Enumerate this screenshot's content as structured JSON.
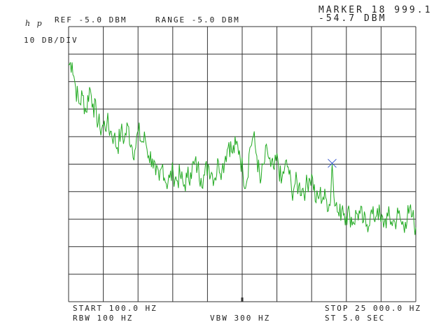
{
  "header": {
    "logo": "h p",
    "scale": "10 DB/DIV",
    "ref": "REF -5.0 DBM",
    "range": "RANGE -5.0 DBM",
    "marker_freq": "MARKER 18 999.1",
    "marker_level": "-54.7 DBM"
  },
  "footer": {
    "start": "START 100.0 HZ",
    "stop": "STOP 25 000.0 HZ",
    "rbw": "RBW 100 HZ",
    "vbw": "VBW 300 HZ",
    "sweep": "ST 5.0 SEC"
  },
  "colors": {
    "trace": "#22aa22",
    "grid": "#333333",
    "marker": "#3355cc"
  },
  "chart_data": {
    "type": "line",
    "x_units": "Hz",
    "y_units": "dBm",
    "xlim": [
      100,
      25000
    ],
    "ylim": [
      -105,
      -5
    ],
    "grid": true,
    "marker": {
      "x": 18999.1,
      "y": -54.7,
      "symbol": "x"
    },
    "series": [
      {
        "x": [
          100,
          350,
          600,
          850,
          1100,
          1350,
          1600,
          1850,
          2100,
          2350,
          2600,
          2850,
          3100,
          3350,
          3600,
          3850,
          4100,
          4350,
          4600,
          4850,
          5100,
          5350,
          5600,
          5850,
          6100,
          6350,
          6600,
          6850,
          7100,
          7350,
          7600,
          7850,
          8100,
          8350,
          8600,
          8850,
          9100,
          9350,
          9600,
          9850,
          10100,
          10350,
          10600,
          10850,
          11100,
          11350,
          11600,
          11850,
          12100,
          12350,
          12600,
          12850,
          13100,
          13350,
          13600,
          13850,
          14100,
          14350,
          14600,
          14850,
          15100,
          15350,
          15600,
          15850,
          16100,
          16350,
          16600,
          16850,
          17100,
          17350,
          17600,
          17850,
          18100,
          18350,
          18600,
          18850,
          19000,
          19250,
          19500,
          19750,
          20000,
          20250,
          20500,
          20750,
          21000,
          21250,
          21500,
          21750,
          22000,
          22250,
          22500,
          22750,
          23000,
          23250,
          23500,
          23750,
          24000,
          24250,
          24500,
          24750,
          25000
        ],
        "y": [
          -19,
          -18,
          -27,
          -33,
          -30,
          -36,
          -27,
          -33,
          -37,
          -42,
          -41,
          -40,
          -43,
          -45,
          -49,
          -43,
          -46,
          -41,
          -48,
          -50,
          -43,
          -47,
          -46,
          -52,
          -53,
          -59,
          -61,
          -55,
          -62,
          -60,
          -58,
          -61,
          -59,
          -63,
          -60,
          -58,
          -55,
          -56,
          -60,
          -59,
          -55,
          -58,
          -60,
          -54,
          -57,
          -52,
          -47,
          -51,
          -48,
          -50,
          -58,
          -62,
          -49,
          -45,
          -52,
          -62,
          -55,
          -50,
          -56,
          -57,
          -53,
          -62,
          -56,
          -56,
          -65,
          -62,
          -63,
          -64,
          -64,
          -60,
          -60,
          -69,
          -66,
          -67,
          -68,
          -70,
          -55,
          -70,
          -74,
          -70,
          -74,
          -73,
          -76,
          -73,
          -73,
          -76,
          -77,
          -73,
          -75,
          -71,
          -76,
          -76,
          -74,
          -76,
          -76,
          -73,
          -77,
          -76,
          -73,
          -74,
          -78
        ]
      }
    ]
  }
}
